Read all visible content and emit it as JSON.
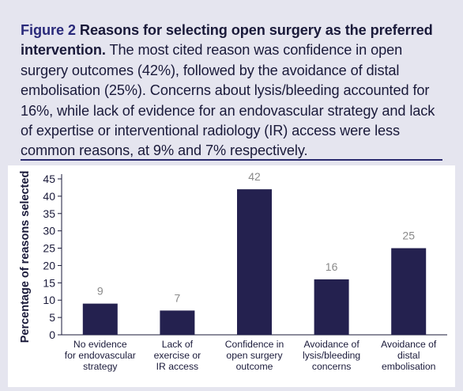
{
  "figure": {
    "label": "Figure 2",
    "title": "Reasons for selecting open surgery as the preferred intervention.",
    "description": "The most cited reason was confidence in open surgery outcomes (42%), followed by the avoidance of distal embolisation (25%). Concerns about lysis/bleeding accounted for 16%, while lack of evidence for an endovascular strategy and lack of expertise or interventional radiology (IR) access were less common reasons, at 9% and 7% respectively."
  },
  "chart_data": {
    "type": "bar",
    "categories": [
      [
        "No evidence",
        "for endovascular",
        "strategy"
      ],
      [
        "Lack of",
        "exercise or",
        "IR access"
      ],
      [
        "Confidence in",
        "open surgery",
        "outcome"
      ],
      [
        "Avoidance of",
        "lysis/bleeding",
        "concerns"
      ],
      [
        "Avoidance of",
        "distal",
        "embolisation"
      ]
    ],
    "values": [
      9,
      7,
      42,
      16,
      25
    ],
    "data_labels": [
      "9",
      "7",
      "42",
      "16",
      "25"
    ],
    "ylabel": "Percentage of reasons selected",
    "ylim": [
      0,
      45
    ],
    "yticks": [
      0,
      5,
      10,
      15,
      20,
      25,
      30,
      35,
      40,
      45
    ],
    "bar_color": "#24214f",
    "label_color": "#8a8a8a",
    "grid": false,
    "legend": "none"
  },
  "colors": {
    "panel_background": "#e5e5ef",
    "plot_background": "#ffffff",
    "accent": "#2a2a7a",
    "text": "#1a1a3a"
  }
}
